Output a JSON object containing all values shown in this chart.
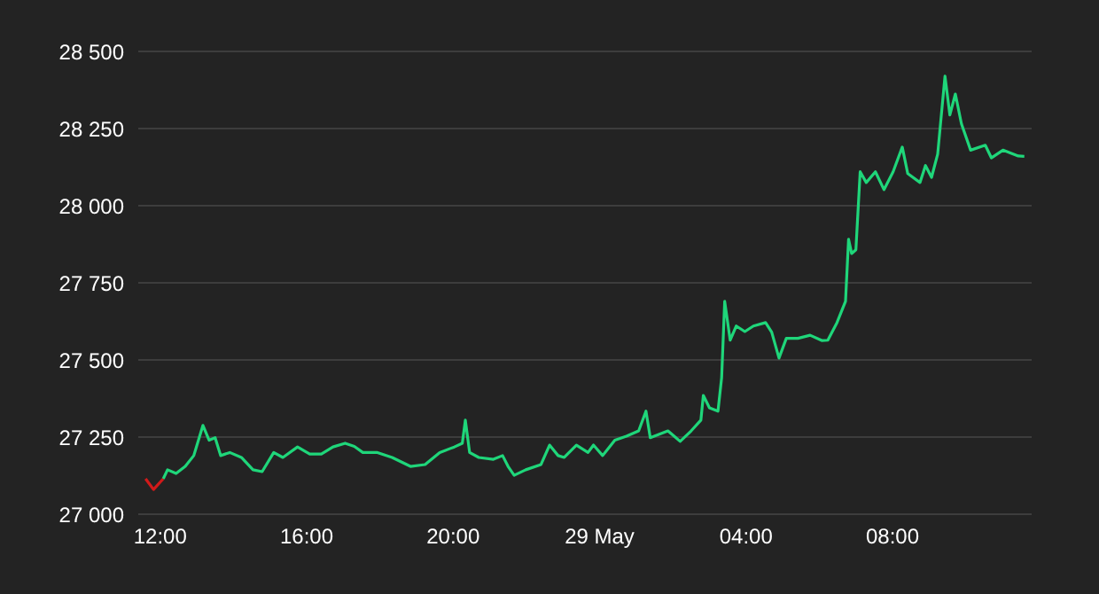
{
  "chart_data": {
    "type": "line",
    "grid": "y",
    "marker": "none",
    "line_style": "solid",
    "xlim": [
      "--05-28T11:24",
      "--05-29T11:48"
    ],
    "xticks": [
      {
        "value": "--05-28T12:00",
        "label": "12:00"
      },
      {
        "value": "--05-28T16:00",
        "label": "16:00"
      },
      {
        "value": "--05-28T20:00",
        "label": "20:00"
      },
      {
        "value": "--05-29T00:00",
        "label": "29 May"
      },
      {
        "value": "--05-29T04:00",
        "label": "04:00"
      },
      {
        "value": "--05-29T08:00",
        "label": "08:00"
      }
    ],
    "ylim": [
      27000,
      28500
    ],
    "yticks": [
      {
        "value": 27000,
        "label": "27 000"
      },
      {
        "value": 27250,
        "label": "27 250"
      },
      {
        "value": 27500,
        "label": "27 500"
      },
      {
        "value": 27750,
        "label": "27 750"
      },
      {
        "value": 28000,
        "label": "28 000"
      },
      {
        "value": 28250,
        "label": "28 250"
      },
      {
        "value": 28500,
        "label": "28 500"
      }
    ],
    "series": [
      {
        "color": "#d11a1a",
        "x": [
          "--05-28T11:36",
          "--05-28T11:49",
          "--05-28T12:05"
        ],
        "values": [
          27115,
          27080,
          27115
        ]
      },
      {
        "color": "#1fd67a",
        "x": [
          "--05-28T12:05",
          "--05-28T12:12",
          "--05-28T12:26",
          "--05-28T12:41",
          "--05-28T12:55",
          "--05-28T13:10",
          "--05-28T13:20",
          "--05-28T13:30",
          "--05-28T13:39",
          "--05-28T13:54",
          "--05-28T14:13",
          "--05-28T14:32",
          "--05-28T14:47",
          "--05-28T15:06",
          "--05-28T15:21",
          "--05-28T15:45",
          "--05-28T16:05",
          "--05-28T16:24",
          "--05-28T16:43",
          "--05-28T17:03",
          "--05-28T17:18",
          "--05-28T17:32",
          "--05-28T17:56",
          "--05-28T18:20",
          "--05-28T18:50",
          "--05-28T19:14",
          "--05-28T19:38",
          "--05-28T20:02",
          "--05-28T20:15",
          "--05-28T20:20",
          "--05-28T20:27",
          "--05-28T20:42",
          "--05-28T21:06",
          "--05-28T21:21",
          "--05-28T21:30",
          "--05-28T21:40",
          "--05-28T21:59",
          "--05-28T22:24",
          "--05-28T22:38",
          "--05-28T22:52",
          "--05-28T23:02",
          "--05-28T23:22",
          "--05-28T23:41",
          "--05-28T23:50",
          "--05-29T00:05",
          "--05-29T00:25",
          "--05-29T00:44",
          "--05-29T01:04",
          "--05-29T01:16",
          "--05-29T01:23",
          "--05-29T01:52",
          "--05-29T02:12",
          "--05-29T02:30",
          "--05-29T02:46",
          "--05-29T02:50",
          "--05-29T03:00",
          "--05-29T03:14",
          "--05-29T03:20",
          "--05-29T03:25",
          "--05-29T03:34",
          "--05-29T03:44",
          "--05-29T03:58",
          "--05-29T04:12",
          "--05-29T04:32",
          "--05-29T04:42",
          "--05-29T04:54",
          "--05-29T05:06",
          "--05-29T05:25",
          "--05-29T05:45",
          "--05-29T06:04",
          "--05-29T06:14",
          "--05-29T06:29",
          "--05-29T06:43",
          "--05-29T06:48",
          "--05-29T06:53",
          "--05-29T07:00",
          "--05-29T07:07",
          "--05-29T07:17",
          "--05-29T07:32",
          "--05-29T07:46",
          "--05-29T08:01",
          "--05-29T08:16",
          "--05-29T08:25",
          "--05-29T08:45",
          "--05-29T08:54",
          "--05-29T09:04",
          "--05-29T09:14",
          "--05-29T09:26",
          "--05-29T09:34",
          "--05-29T09:43",
          "--05-29T09:53",
          "--05-29T10:08",
          "--05-29T10:32",
          "--05-29T10:42",
          "--05-29T11:01",
          "--05-29T11:26",
          "--05-29T11:36"
        ],
        "values": [
          27115,
          27144,
          27132,
          27155,
          27190,
          27288,
          27240,
          27248,
          27190,
          27200,
          27184,
          27144,
          27138,
          27200,
          27184,
          27218,
          27195,
          27195,
          27218,
          27230,
          27220,
          27200,
          27200,
          27184,
          27155,
          27161,
          27200,
          27218,
          27230,
          27305,
          27200,
          27184,
          27178,
          27190,
          27155,
          27126,
          27144,
          27161,
          27224,
          27190,
          27184,
          27224,
          27200,
          27224,
          27190,
          27240,
          27253,
          27270,
          27334,
          27248,
          27270,
          27236,
          27270,
          27305,
          27385,
          27345,
          27334,
          27443,
          27690,
          27564,
          27610,
          27592,
          27610,
          27621,
          27590,
          27506,
          27570,
          27570,
          27580,
          27563,
          27564,
          27621,
          27690,
          27891,
          27845,
          27857,
          28110,
          28075,
          28110,
          28052,
          28110,
          28190,
          28104,
          28075,
          28130,
          28092,
          28167,
          28420,
          28294,
          28362,
          28265,
          28180,
          28196,
          28155,
          28180,
          28161,
          28160
        ]
      }
    ]
  }
}
